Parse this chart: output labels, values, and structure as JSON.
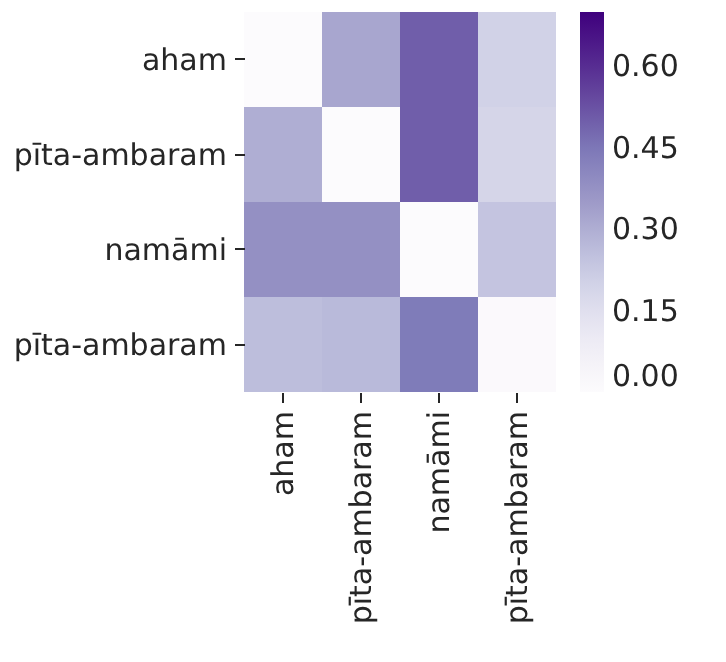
{
  "chart_data": {
    "type": "heatmap",
    "categories": [
      "aham",
      "pīta-ambaram",
      "namāmi",
      "pīta-ambaram"
    ],
    "y_categories": [
      "aham",
      "pīta-ambaram",
      "namāmi",
      "pīta-ambaram"
    ],
    "cells": [
      [
        0,
        0.32,
        0.5,
        0.2
      ],
      [
        0.3,
        0,
        0.5,
        0.19
      ],
      [
        0.38,
        0.38,
        0,
        0.24
      ],
      [
        0.26,
        0.27,
        0.44,
        0.01
      ]
    ],
    "clim": [
      0,
      0.7
    ],
    "cticks": [
      {
        "value": 0,
        "label": "0.00"
      },
      {
        "value": 0.15,
        "label": "0.15"
      },
      {
        "value": 0.3,
        "label": "0.30"
      },
      {
        "value": 0.45,
        "label": "0.45"
      },
      {
        "value": 0.6,
        "label": "0.60"
      }
    ]
  }
}
